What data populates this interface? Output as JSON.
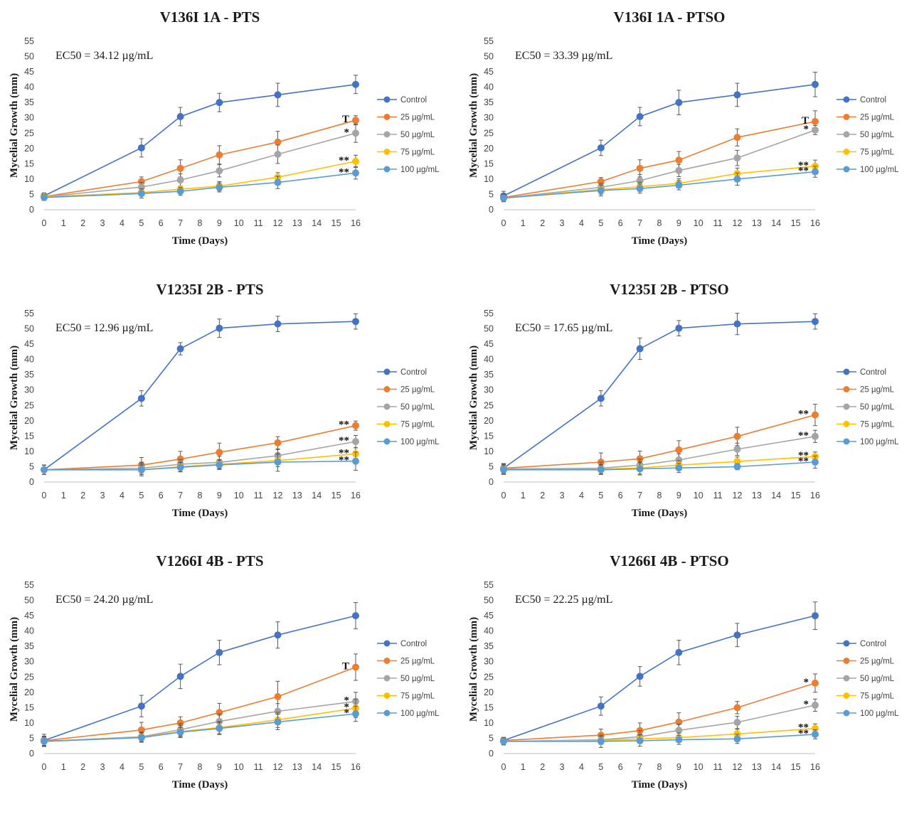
{
  "chart_data": [
    {
      "type": "line",
      "title": "V136I 1A - PTS",
      "ec50": "EC50 = 34.12 µg/mL",
      "xlabel": "Time (Days)",
      "ylabel": "Mycelial Growth (mm)",
      "xlim": [
        0,
        16
      ],
      "ylim": [
        0,
        55
      ],
      "xticks": [
        "0",
        "1",
        "2",
        "3",
        "4",
        "5",
        "6",
        "7",
        "8",
        "9",
        "10",
        "11",
        "12",
        "13",
        "14",
        "15",
        "16"
      ],
      "yticks": [
        "0",
        "5",
        "10",
        "15",
        "20",
        "25",
        "30",
        "35",
        "40",
        "45",
        "50",
        "55"
      ],
      "x": [
        0,
        5,
        7,
        9,
        12,
        16
      ],
      "series": [
        {
          "name": "Control",
          "color": "#4472C4",
          "values": [
            4.5,
            20.2,
            30.4,
            35.0,
            37.5,
            40.9
          ],
          "errors": [
            1.0,
            3.0,
            3.0,
            3.0,
            3.8,
            3.0
          ]
        },
        {
          "name": "25 µg/mL",
          "color": "#ED7D31",
          "values": [
            4.3,
            9.2,
            13.5,
            17.9,
            22.1,
            29.2
          ],
          "errors": [
            1.0,
            1.5,
            2.8,
            3.0,
            3.5,
            1.5
          ],
          "annotation": "T"
        },
        {
          "name": "50 µg/mL",
          "color": "#A5A5A5",
          "values": [
            4.2,
            7.4,
            9.7,
            12.7,
            18.1,
            25.0
          ],
          "errors": [
            1.0,
            1.5,
            2.0,
            2.0,
            3.0,
            3.0
          ],
          "annotation": "*"
        },
        {
          "name": "75 µg/mL",
          "color": "#FFC000",
          "values": [
            4.2,
            5.6,
            6.7,
            7.7,
            10.6,
            15.8
          ],
          "errors": [
            1.0,
            1.2,
            1.0,
            1.5,
            1.5,
            2.0
          ],
          "annotation": "**"
        },
        {
          "name": "100 µg/mL",
          "color": "#5B9BD5",
          "values": [
            4.0,
            5.3,
            6.0,
            7.3,
            8.9,
            12.0
          ],
          "errors": [
            1.0,
            1.5,
            1.3,
            1.5,
            2.0,
            2.0
          ],
          "annotation": "**"
        }
      ]
    },
    {
      "type": "line",
      "title": "V136I 1A - PTSO",
      "ec50": "EC50 = 33.39 µg/mL",
      "xlabel": "Time (Days)",
      "ylabel": "Mycelial Growth (mm)",
      "xlim": [
        0,
        16
      ],
      "ylim": [
        0,
        55
      ],
      "xticks": [
        "0",
        "1",
        "2",
        "3",
        "4",
        "5",
        "6",
        "7",
        "8",
        "9",
        "10",
        "11",
        "12",
        "13",
        "14",
        "15",
        "16"
      ],
      "yticks": [
        "0",
        "5",
        "10",
        "15",
        "20",
        "25",
        "30",
        "35",
        "40",
        "45",
        "50",
        "55"
      ],
      "x": [
        0,
        5,
        7,
        9,
        12,
        16
      ],
      "series": [
        {
          "name": "Control",
          "color": "#4472C4",
          "values": [
            4.5,
            20.2,
            30.4,
            35.0,
            37.5,
            40.9
          ],
          "errors": [
            1.5,
            2.5,
            3.0,
            4.0,
            3.8,
            4.0
          ]
        },
        {
          "name": "25 µg/mL",
          "color": "#ED7D31",
          "values": [
            4.0,
            9.2,
            13.5,
            16.2,
            23.6,
            28.8
          ],
          "errors": [
            1.0,
            1.3,
            2.8,
            2.8,
            2.8,
            3.5
          ],
          "annotation": "T"
        },
        {
          "name": "50 µg/mL",
          "color": "#A5A5A5",
          "values": [
            3.8,
            7.3,
            9.5,
            12.8,
            16.9,
            26.0
          ],
          "errors": [
            1.0,
            1.3,
            2.0,
            2.0,
            2.5,
            1.5
          ],
          "annotation": "*"
        },
        {
          "name": "75 µg/mL",
          "color": "#FFC000",
          "values": [
            3.8,
            6.6,
            7.5,
            8.6,
            11.8,
            14.2
          ],
          "errors": [
            1.0,
            1.5,
            1.5,
            1.5,
            1.8,
            2.0
          ],
          "annotation": "**"
        },
        {
          "name": "100 µg/mL",
          "color": "#5B9BD5",
          "values": [
            3.8,
            6.3,
            6.9,
            8.0,
            10.0,
            12.4
          ],
          "errors": [
            1.2,
            1.8,
            1.5,
            1.5,
            2.0,
            1.8
          ],
          "annotation": "**"
        }
      ]
    },
    {
      "type": "line",
      "title": "V1235I 2B - PTS",
      "ec50": "EC50 = 12.96 µg/mL",
      "xlabel": "Time (Days)",
      "ylabel": "Mycelial Growth (mm)",
      "xlim": [
        0,
        16
      ],
      "ylim": [
        0,
        55
      ],
      "xticks": [
        "0",
        "1",
        "2",
        "3",
        "4",
        "5",
        "6",
        "7",
        "8",
        "9",
        "10",
        "11",
        "12",
        "13",
        "14",
        "15",
        "16"
      ],
      "yticks": [
        "0",
        "5",
        "10",
        "15",
        "20",
        "25",
        "30",
        "35",
        "40",
        "45",
        "50",
        "55"
      ],
      "x": [
        0,
        5,
        7,
        9,
        12,
        16
      ],
      "series": [
        {
          "name": "Control",
          "color": "#4472C4",
          "values": [
            4.0,
            27.3,
            43.5,
            50.2,
            51.6,
            52.4
          ],
          "errors": [
            1.5,
            2.5,
            2.0,
            3.0,
            2.5,
            2.5
          ]
        },
        {
          "name": "25 µg/mL",
          "color": "#ED7D31",
          "values": [
            4.0,
            5.5,
            7.5,
            9.7,
            12.8,
            18.4
          ],
          "errors": [
            1.5,
            2.5,
            2.5,
            3.0,
            2.0,
            1.5
          ],
          "annotation": "**"
        },
        {
          "name": "50 µg/mL",
          "color": "#A5A5A5",
          "values": [
            4.0,
            4.5,
            5.8,
            6.4,
            8.6,
            13.2
          ],
          "errors": [
            1.5,
            2.0,
            1.5,
            2.0,
            2.0,
            2.0
          ],
          "annotation": "**"
        },
        {
          "name": "75 µg/mL",
          "color": "#FFC000",
          "values": [
            4.0,
            4.0,
            5.0,
            5.8,
            7.0,
            9.2
          ],
          "errors": [
            1.5,
            1.5,
            1.5,
            1.5,
            2.0,
            2.0
          ],
          "annotation": "**"
        },
        {
          "name": "100 µg/mL",
          "color": "#5B9BD5",
          "values": [
            4.0,
            4.0,
            4.8,
            5.6,
            6.5,
            6.8
          ],
          "errors": [
            1.5,
            2.0,
            1.5,
            1.5,
            3.0,
            3.0
          ],
          "annotation": "**"
        }
      ]
    },
    {
      "type": "line",
      "title": "V1235I 2B - PTSO",
      "ec50": "EC50 = 17.65 µg/mL",
      "xlabel": "Time (Days)",
      "ylabel": "Mycelial Growth (mm)",
      "xlim": [
        0,
        16
      ],
      "ylim": [
        0,
        55
      ],
      "xticks": [
        "0",
        "1",
        "2",
        "3",
        "4",
        "5",
        "6",
        "7",
        "8",
        "9",
        "10",
        "11",
        "12",
        "13",
        "14",
        "15",
        "16"
      ],
      "yticks": [
        "0",
        "5",
        "10",
        "15",
        "20",
        "25",
        "30",
        "35",
        "40",
        "45",
        "50",
        "55"
      ],
      "x": [
        0,
        5,
        7,
        9,
        12,
        16
      ],
      "series": [
        {
          "name": "Control",
          "color": "#4472C4",
          "values": [
            4.5,
            27.3,
            43.5,
            50.2,
            51.6,
            52.4
          ],
          "errors": [
            1.5,
            2.5,
            3.5,
            2.5,
            3.5,
            2.5
          ]
        },
        {
          "name": "25 µg/mL",
          "color": "#ED7D31",
          "values": [
            4.5,
            6.5,
            7.6,
            10.5,
            14.9,
            21.9
          ],
          "errors": [
            1.5,
            3.0,
            2.5,
            3.0,
            3.0,
            3.5
          ],
          "annotation": "**"
        },
        {
          "name": "50 µg/mL",
          "color": "#A5A5A5",
          "values": [
            4.3,
            4.5,
            5.5,
            7.2,
            10.7,
            14.9
          ],
          "errors": [
            1.5,
            2.0,
            2.0,
            2.0,
            2.0,
            2.0
          ],
          "annotation": "**"
        },
        {
          "name": "75 µg/mL",
          "color": "#FFC000",
          "values": [
            4.0,
            4.2,
            4.6,
            5.5,
            6.7,
            8.3
          ],
          "errors": [
            1.5,
            1.5,
            2.0,
            1.5,
            1.5,
            1.5
          ],
          "annotation": "**"
        },
        {
          "name": "100 µg/mL",
          "color": "#5B9BD5",
          "values": [
            4.0,
            4.0,
            4.3,
            4.6,
            5.0,
            6.5
          ],
          "errors": [
            1.5,
            1.5,
            2.0,
            1.5,
            1.0,
            2.0
          ],
          "annotation": "**"
        }
      ]
    },
    {
      "type": "line",
      "title": "V1266I 4B - PTS",
      "ec50": "EC50 = 24.20 µg/mL",
      "xlabel": "Time (Days)",
      "ylabel": "Mycelial Growth (mm)",
      "xlim": [
        0,
        16
      ],
      "ylim": [
        0,
        55
      ],
      "xticks": [
        "0",
        "1",
        "2",
        "3",
        "4",
        "5",
        "6",
        "7",
        "8",
        "9",
        "10",
        "11",
        "12",
        "13",
        "14",
        "15",
        "16"
      ],
      "yticks": [
        "0",
        "5",
        "10",
        "15",
        "20",
        "25",
        "30",
        "35",
        "40",
        "45",
        "50",
        "55"
      ],
      "x": [
        0,
        5,
        7,
        9,
        12,
        16
      ],
      "series": [
        {
          "name": "Control",
          "color": "#4472C4",
          "values": [
            4.3,
            15.5,
            25.2,
            33.0,
            38.7,
            45.0
          ],
          "errors": [
            2.0,
            3.5,
            4.0,
            4.0,
            4.3,
            4.3
          ]
        },
        {
          "name": "25 µg/mL",
          "color": "#ED7D31",
          "values": [
            4.2,
            7.7,
            10.0,
            13.4,
            18.6,
            28.2
          ],
          "errors": [
            1.5,
            2.5,
            2.0,
            3.0,
            5.0,
            4.3
          ],
          "annotation": "T"
        },
        {
          "name": "50 µg/mL",
          "color": "#A5A5A5",
          "values": [
            4.0,
            5.5,
            7.8,
            10.5,
            13.8,
            17.0
          ],
          "errors": [
            1.5,
            1.5,
            2.0,
            2.5,
            2.5,
            3.0
          ],
          "annotation": "*"
        },
        {
          "name": "75 µg/mL",
          "color": "#FFC000",
          "values": [
            4.0,
            5.3,
            7.2,
            8.5,
            11.0,
            14.8
          ],
          "errors": [
            1.5,
            1.5,
            2.0,
            2.0,
            2.5,
            3.0
          ],
          "annotation": "*"
        },
        {
          "name": "100 µg/mL",
          "color": "#5B9BD5",
          "values": [
            4.0,
            5.2,
            7.0,
            8.2,
            10.3,
            13.0
          ],
          "errors": [
            1.5,
            1.5,
            1.5,
            2.0,
            2.5,
            2.5
          ],
          "annotation": "*"
        }
      ]
    },
    {
      "type": "line",
      "title": "V1266I 4B - PTSO",
      "ec50": "EC50 = 22.25 µg/mL",
      "xlabel": "Time (Days)",
      "ylabel": "Mycelial Growth (mm)",
      "xlim": [
        0,
        16
      ],
      "ylim": [
        0,
        55
      ],
      "xticks": [
        "0",
        "1",
        "2",
        "3",
        "4",
        "5",
        "6",
        "7",
        "8",
        "9",
        "10",
        "11",
        "12",
        "13",
        "14",
        "15",
        "16"
      ],
      "yticks": [
        "0",
        "5",
        "10",
        "15",
        "20",
        "25",
        "30",
        "35",
        "40",
        "45",
        "50",
        "55"
      ],
      "x": [
        0,
        5,
        7,
        9,
        12,
        16
      ],
      "series": [
        {
          "name": "Control",
          "color": "#4472C4",
          "values": [
            4.3,
            15.5,
            25.2,
            33.0,
            38.7,
            45.0
          ],
          "errors": [
            1.0,
            3.0,
            3.2,
            4.0,
            3.8,
            4.5
          ]
        },
        {
          "name": "25 µg/mL",
          "color": "#ED7D31",
          "values": [
            4.3,
            6.0,
            7.5,
            10.3,
            15.0,
            23.0
          ],
          "errors": [
            1.0,
            2.0,
            2.5,
            3.0,
            2.0,
            3.0
          ],
          "annotation": "*"
        },
        {
          "name": "50 µg/mL",
          "color": "#A5A5A5",
          "values": [
            4.0,
            4.5,
            5.5,
            7.6,
            10.2,
            15.8
          ],
          "errors": [
            1.0,
            1.5,
            2.0,
            2.0,
            2.0,
            2.0
          ],
          "annotation": "*"
        },
        {
          "name": "75 µg/mL",
          "color": "#FFC000",
          "values": [
            4.0,
            4.3,
            4.8,
            5.2,
            6.4,
            8.2
          ],
          "errors": [
            1.0,
            1.2,
            1.5,
            1.5,
            1.5,
            1.5
          ],
          "annotation": "**"
        },
        {
          "name": "100 µg/mL",
          "color": "#5B9BD5",
          "values": [
            4.0,
            4.0,
            4.2,
            4.5,
            4.8,
            6.3
          ],
          "errors": [
            1.2,
            2.0,
            1.8,
            1.5,
            1.5,
            1.5
          ],
          "annotation": "**"
        }
      ]
    }
  ]
}
